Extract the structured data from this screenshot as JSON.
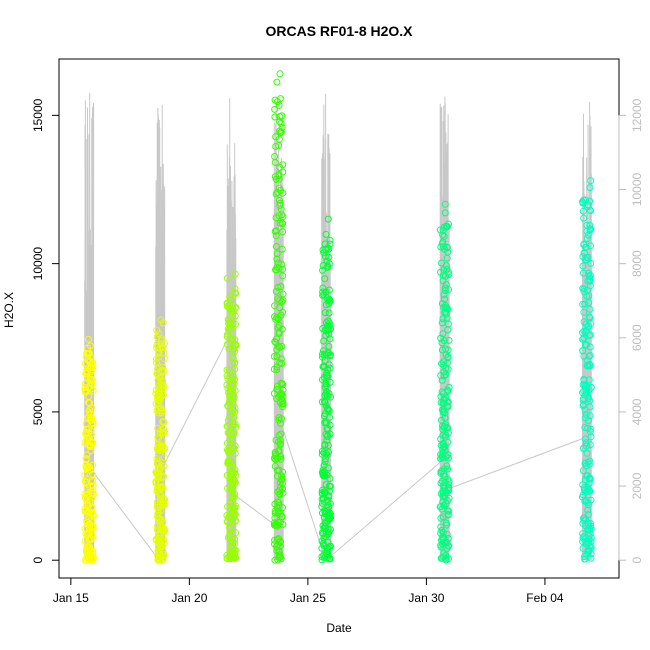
{
  "chart_data": {
    "type": "scatter",
    "title": "ORCAS RF01-8 H2O.X",
    "xlabel": "Date",
    "ylabel": "H2O.X",
    "xlim": [
      "2016-01-14T12:00",
      "2016-02-07T03:00"
    ],
    "ylim": [
      -600,
      16900
    ],
    "y2lim": [
      -480,
      13520
    ],
    "x_ticks": [
      {
        "date": "2016-01-15",
        "label": "Jan 15"
      },
      {
        "date": "2016-01-20",
        "label": "Jan 20"
      },
      {
        "date": "2016-01-25",
        "label": "Jan 25"
      },
      {
        "date": "2016-01-30",
        "label": "Jan 30"
      },
      {
        "date": "2016-02-04",
        "label": "Feb 04"
      }
    ],
    "y_ticks": [
      0,
      5000,
      10000,
      15000
    ],
    "y2_ticks": [
      0,
      2000,
      4000,
      6000,
      8000,
      10000,
      12000
    ],
    "grid": false,
    "legend": "none",
    "colors": {
      "connector": "#c8c8c8",
      "secondary_axis": "#bdbdbd"
    },
    "flights": [
      {
        "start": "2016-01-15T14:00",
        "end": "2016-01-15T23:00",
        "h2o_max": 7450,
        "color": "#ffff00",
        "secondary_max": 12700
      },
      {
        "start": "2016-01-18T14:00",
        "end": "2016-01-18T23:00",
        "h2o_max": 8100,
        "color": "#e5ff00",
        "secondary_max": 12300
      },
      {
        "start": "2016-01-21T14:00",
        "end": "2016-01-21T23:00",
        "h2o_max": 9650,
        "color": "#99ff00",
        "secondary_max": 12800
      },
      {
        "start": "2016-01-23T14:00",
        "end": "2016-01-23T23:00",
        "h2o_max": 16400,
        "color": "#33ff00",
        "secondary_max": 12400
      },
      {
        "start": "2016-01-25T14:00",
        "end": "2016-01-25T23:00",
        "h2o_max": 11500,
        "color": "#00ff33",
        "secondary_max": 12700
      },
      {
        "start": "2016-01-30T14:00",
        "end": "2016-01-30T23:00",
        "h2o_max": 12000,
        "color": "#00ff80",
        "secondary_max": 12900
      },
      {
        "start": "2016-02-05T14:00",
        "end": "2016-02-05T23:00",
        "h2o_max": 12800,
        "color": "#00ffbf",
        "secondary_max": 12400
      }
    ],
    "track_line": [
      {
        "date": "2016-01-15T22:00",
        "value": 3000
      },
      {
        "date": "2016-01-18T15:00",
        "value": 100
      },
      {
        "date": "2016-01-18T22:00",
        "value": 3200
      },
      {
        "date": "2016-01-21T14:00",
        "value": 7400
      },
      {
        "date": "2016-01-21T22:00",
        "value": 2200
      },
      {
        "date": "2016-01-23T14:00",
        "value": 1200
      },
      {
        "date": "2016-01-23T22:00",
        "value": 4500
      },
      {
        "date": "2016-01-25T14:00",
        "value": 400
      },
      {
        "date": "2016-01-25T22:00",
        "value": 100
      },
      {
        "date": "2016-01-30T14:00",
        "value": 3300
      },
      {
        "date": "2016-01-30T22:00",
        "value": 2400
      },
      {
        "date": "2016-02-05T14:00",
        "value": 4100
      }
    ]
  }
}
